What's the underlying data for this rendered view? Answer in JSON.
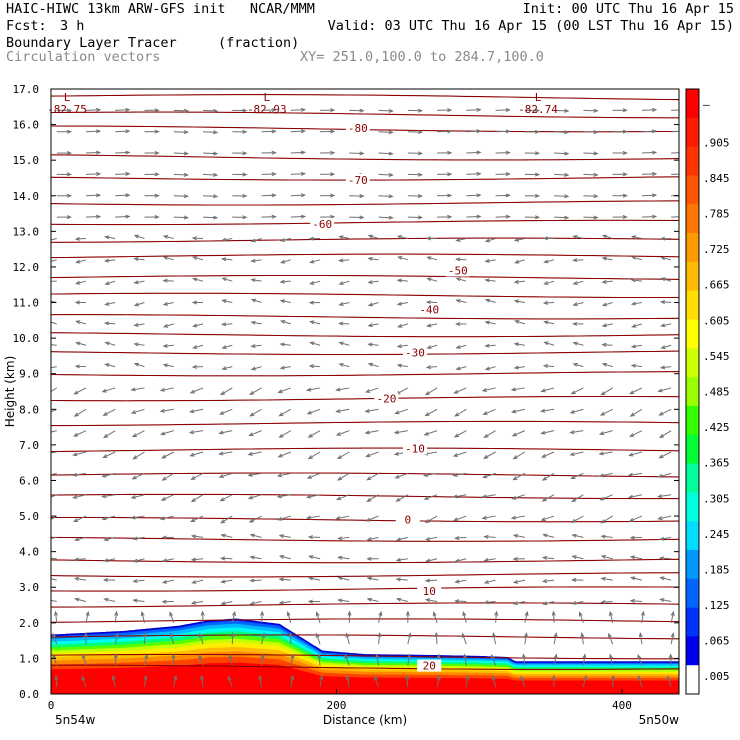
{
  "header": {
    "title": "HAIC-HIWC 13km ARW-GFS init   NCAR/MMM",
    "init": "Init: 00 UTC Thu 16 Apr 15",
    "fcst_label": "Fcst:",
    "fcst_value": "3 h",
    "valid": "Valid: 03 UTC Thu 16 Apr 15 (00 LST Thu 16 Apr 15)",
    "field": "Boundary Layer Tracer",
    "field_units": "(fraction)",
    "vectors": "Circulation vectors",
    "xsec": "XY= 251.0,100.0 to 284.7,100.0"
  },
  "colors": {
    "contour": "#8b0000",
    "vector": "#707070",
    "accent": "#ff0000"
  },
  "chart_data": {
    "type": "heatmap",
    "title": "Boundary Layer Tracer",
    "xlabel": "Distance (km)",
    "ylabel": "Height (km)",
    "xlim": [
      0,
      440
    ],
    "ylim": [
      0,
      17
    ],
    "x_ticks": [
      0,
      200,
      400
    ],
    "y_ticks": [
      "0.0",
      "1.0",
      "2.0",
      "3.0",
      "4.0",
      "5.0",
      "6.0",
      "7.0",
      "8.0",
      "9.0",
      "10.0",
      "11.0",
      "12.0",
      "13.0",
      "14.0",
      "15.0",
      "16.0",
      "17.0"
    ],
    "x_endpoints": [
      "5n54w",
      "5n50w"
    ],
    "colorbar": {
      "labels": [
        "–",
        ".905",
        ".845",
        ".785",
        ".725",
        ".665",
        ".605",
        ".545",
        ".485",
        ".425",
        ".365",
        ".305",
        ".245",
        ".185",
        ".125",
        ".065",
        ".005"
      ],
      "colors": [
        "#ff0000",
        "#ff1a00",
        "#ff3300",
        "#ff5500",
        "#ff7700",
        "#ff9900",
        "#ffbb00",
        "#ffdd00",
        "#ffff00",
        "#ccff00",
        "#99ff00",
        "#33ff00",
        "#00ff33",
        "#00ff99",
        "#00ffdd",
        "#00ddff",
        "#0099ff",
        "#0066ff",
        "#0033ff",
        "#0000ee",
        "#ffffff"
      ]
    },
    "boundary_layer_top": {
      "x": [
        0,
        50,
        90,
        110,
        130,
        160,
        190,
        220,
        260,
        300,
        320,
        325,
        440
      ],
      "z": [
        1.65,
        1.75,
        1.9,
        2.05,
        2.1,
        1.95,
        1.2,
        1.1,
        1.08,
        1.05,
        1.02,
        0.9,
        0.9
      ]
    },
    "contour_labels": [
      {
        "text": "-80",
        "x": 215,
        "z": 15.9
      },
      {
        "text": "-70",
        "x": 215,
        "z": 14.45
      },
      {
        "text": "-60",
        "x": 190,
        "z": 13.2
      },
      {
        "text": "-50",
        "x": 285,
        "z": 11.9
      },
      {
        "text": "-40",
        "x": 265,
        "z": 10.8
      },
      {
        "text": "-30",
        "x": 255,
        "z": 9.6
      },
      {
        "text": "-20",
        "x": 235,
        "z": 8.3
      },
      {
        "text": "-10",
        "x": 255,
        "z": 6.9
      },
      {
        "text": "0",
        "x": 250,
        "z": 4.9
      },
      {
        "text": "10",
        "x": 265,
        "z": 2.9
      },
      {
        "text": "20",
        "x": 265,
        "z": 0.8
      }
    ],
    "extrema": [
      {
        "symbol": "L",
        "value": "-82.75",
        "x": 0,
        "z": 16.55
      },
      {
        "symbol": "L",
        "value": "-82.93",
        "x": 140,
        "z": 16.55
      },
      {
        "symbol": "L",
        "value": "-82.74",
        "x": 330,
        "z": 16.55
      }
    ],
    "contour_levels_z": [
      16.8,
      16.3,
      15.9,
      15.1,
      14.5,
      13.8,
      13.25,
      12.75,
      12.3,
      11.7,
      11.2,
      10.6,
      10.1,
      9.6,
      9.0,
      8.3,
      7.6,
      6.85,
      6.15,
      5.55,
      4.9,
      4.35,
      3.75,
      3.35,
      2.95,
      2.5,
      2.05,
      1.6,
      1.05,
      0.75
    ]
  }
}
